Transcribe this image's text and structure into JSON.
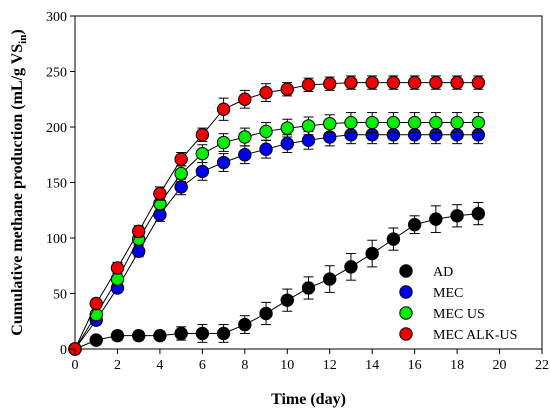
{
  "chart_data": {
    "type": "scatter",
    "xlabel": "Time (day)",
    "ylabel": "Cumulative methane production (mL/g VS",
    "ylabel_subscript": "in",
    "ylabel_close": ")",
    "xlim": [
      0,
      22
    ],
    "ylim": [
      0,
      300
    ],
    "xticks": [
      0,
      2,
      4,
      6,
      8,
      10,
      12,
      14,
      16,
      18,
      20,
      22
    ],
    "yticks": [
      0,
      50,
      100,
      150,
      200,
      250,
      300
    ],
    "legend_position": "lower-right",
    "grid": false,
    "series": [
      {
        "name": "AD",
        "color": "#000000",
        "x": [
          0,
          1,
          2,
          3,
          4,
          5,
          6,
          7,
          8,
          9,
          10,
          11,
          12,
          13,
          14,
          15,
          16,
          17,
          18,
          19
        ],
        "y": [
          0,
          8,
          12,
          12,
          12,
          14,
          14,
          14,
          22,
          32,
          44,
          55,
          63,
          74,
          86,
          99,
          112,
          117,
          120,
          122
        ],
        "err": [
          0,
          3,
          4,
          4,
          4,
          6,
          8,
          8,
          8,
          10,
          10,
          10,
          12,
          12,
          12,
          10,
          8,
          12,
          10,
          10
        ]
      },
      {
        "name": "MEC",
        "color": "#0000ee",
        "x": [
          0,
          1,
          2,
          3,
          4,
          5,
          6,
          7,
          8,
          9,
          10,
          11,
          12,
          13,
          14,
          15,
          16,
          17,
          18,
          19
        ],
        "y": [
          0,
          26,
          55,
          88,
          121,
          146,
          160,
          168,
          175,
          180,
          185,
          188,
          191,
          193,
          193,
          193,
          193,
          193,
          193,
          193
        ],
        "err": [
          0,
          3,
          4,
          5,
          6,
          7,
          8,
          8,
          8,
          8,
          8,
          8,
          8,
          8,
          8,
          8,
          8,
          8,
          8,
          8
        ]
      },
      {
        "name": "MEC US",
        "color": "#00ee00",
        "x": [
          0,
          1,
          2,
          3,
          4,
          5,
          6,
          7,
          8,
          9,
          10,
          11,
          12,
          13,
          14,
          15,
          16,
          17,
          18,
          19
        ],
        "y": [
          0,
          31,
          63,
          99,
          131,
          158,
          176,
          186,
          191,
          196,
          199,
          201,
          203,
          204,
          204,
          204,
          204,
          204,
          204,
          204
        ],
        "err": [
          0,
          3,
          5,
          5,
          6,
          7,
          8,
          8,
          8,
          8,
          8,
          8,
          8,
          9,
          9,
          9,
          9,
          9,
          9,
          9
        ]
      },
      {
        "name": "MEC ALK-US",
        "color": "#ee0000",
        "x": [
          0,
          1,
          2,
          3,
          4,
          5,
          6,
          7,
          8,
          9,
          10,
          11,
          12,
          13,
          14,
          15,
          16,
          17,
          18,
          19
        ],
        "y": [
          0,
          41,
          73,
          106,
          140,
          171,
          193,
          216,
          225,
          231,
          234,
          238,
          239,
          240,
          240,
          240,
          240,
          240,
          240,
          240
        ],
        "err": [
          0,
          3,
          5,
          5,
          6,
          6,
          6,
          10,
          8,
          8,
          6,
          6,
          6,
          6,
          6,
          6,
          6,
          6,
          6,
          6
        ]
      }
    ]
  }
}
